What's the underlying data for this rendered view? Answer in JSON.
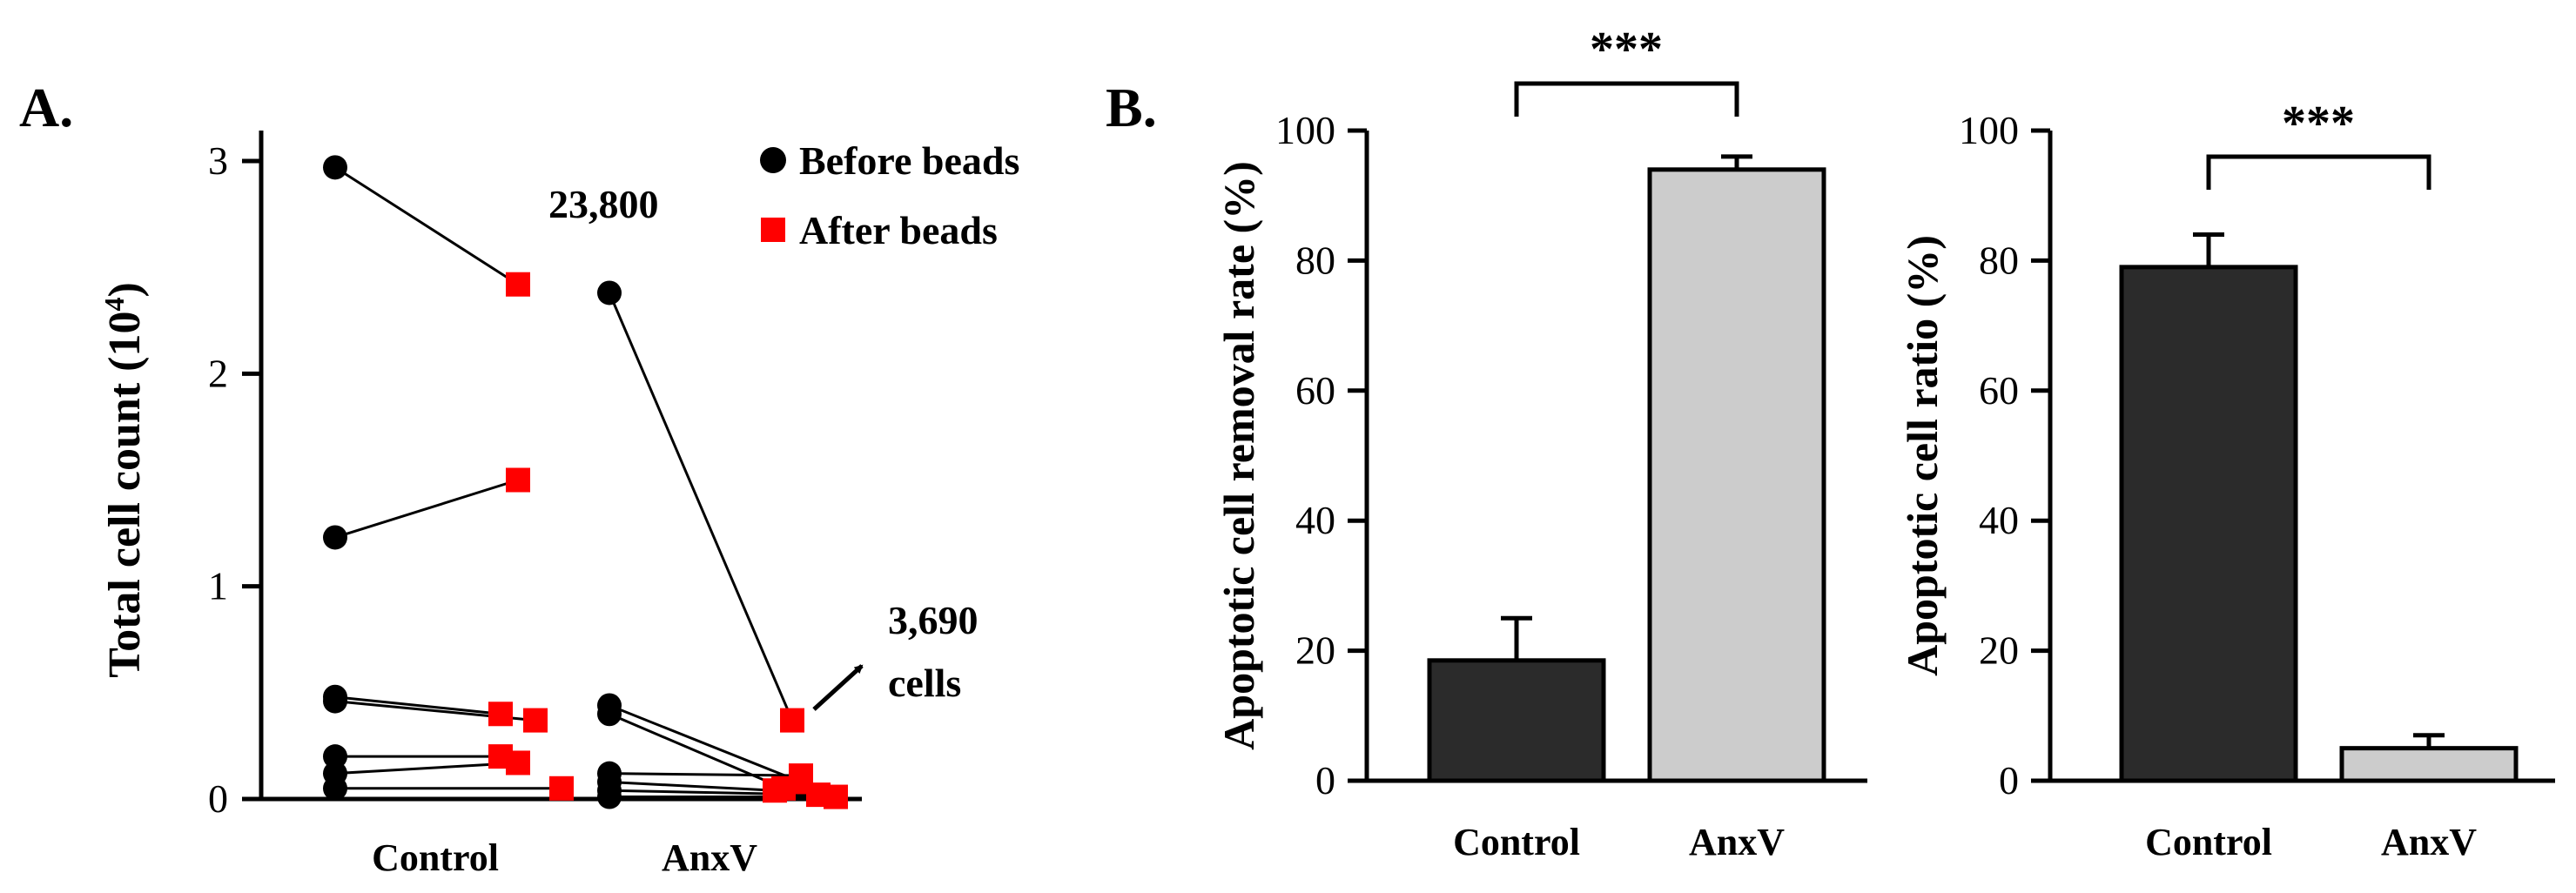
{
  "figure": {
    "panel_a_label": "A.",
    "panel_b_label": "B."
  },
  "chart_data": [
    {
      "type": "scatter",
      "panel": "A",
      "title": "",
      "xlabel": "",
      "ylabel": "Total cell count (10",
      "ylabel_sup": "4",
      "ylabel_end": ")",
      "categories": [
        "Control",
        "AnxV"
      ],
      "ylim": [
        0,
        3
      ],
      "yticks": [
        0,
        1,
        2,
        3
      ],
      "legend": [
        {
          "label": "Before beads",
          "marker": "circle",
          "color": "#000000"
        },
        {
          "label": "After beads",
          "marker": "square",
          "color": "#ff0000"
        }
      ],
      "legend_position": "top-right",
      "annotations": {
        "before_max": "23,800",
        "after_value": "3,690",
        "after_unit": "cells"
      },
      "pairs": [
        {
          "group": "Control",
          "before": 2.97,
          "after": 2.42,
          "after_offset": 0.0
        },
        {
          "group": "Control",
          "before": 1.23,
          "after": 1.5,
          "after_offset": 0.0
        },
        {
          "group": "Control",
          "before": 0.48,
          "after": 0.4,
          "after_offset": -0.1
        },
        {
          "group": "Control",
          "before": 0.46,
          "after": 0.37,
          "after_offset": 0.1
        },
        {
          "group": "Control",
          "before": 0.2,
          "after": 0.2,
          "after_offset": -0.1
        },
        {
          "group": "Control",
          "before": 0.12,
          "after": 0.17,
          "after_offset": 0.0
        },
        {
          "group": "Control",
          "before": 0.05,
          "after": 0.05,
          "after_offset": 0.25
        },
        {
          "group": "AnxV",
          "before": 2.38,
          "after": 0.37,
          "after_offset": 0.0
        },
        {
          "group": "AnxV",
          "before": 0.44,
          "after": 0.08,
          "after_offset": 0.05
        },
        {
          "group": "AnxV",
          "before": 0.4,
          "after": 0.05,
          "after_offset": -0.05
        },
        {
          "group": "AnxV",
          "before": 0.12,
          "after": 0.11,
          "after_offset": 0.05
        },
        {
          "group": "AnxV",
          "before": 0.08,
          "after": 0.04,
          "after_offset": -0.1
        },
        {
          "group": "AnxV",
          "before": 0.04,
          "after": 0.02,
          "after_offset": 0.15
        },
        {
          "group": "AnxV",
          "before": 0.01,
          "after": 0.01,
          "after_offset": 0.25
        }
      ]
    },
    {
      "type": "bar",
      "panel": "B1",
      "title": "",
      "xlabel": "",
      "ylabel": "Apoptotic cell removal rate (%)",
      "categories": [
        "Control",
        "AnxV"
      ],
      "values": [
        18.5,
        94.0
      ],
      "errors": [
        6.5,
        2.0
      ],
      "colors": [
        "#2b2b2b",
        "#cccccc"
      ],
      "ylim": [
        0,
        100
      ],
      "yticks": [
        0,
        20,
        40,
        60,
        80,
        100
      ],
      "significance": "***"
    },
    {
      "type": "bar",
      "panel": "B2",
      "title": "",
      "xlabel": "",
      "ylabel": "Apoptotic cell ratio (%)",
      "categories": [
        "Control",
        "AnxV"
      ],
      "values": [
        79.0,
        5.0
      ],
      "errors": [
        5.0,
        2.0
      ],
      "colors": [
        "#2b2b2b",
        "#cccccc"
      ],
      "ylim": [
        0,
        100
      ],
      "yticks": [
        0,
        20,
        40,
        60,
        80,
        100
      ],
      "significance": "***"
    }
  ]
}
